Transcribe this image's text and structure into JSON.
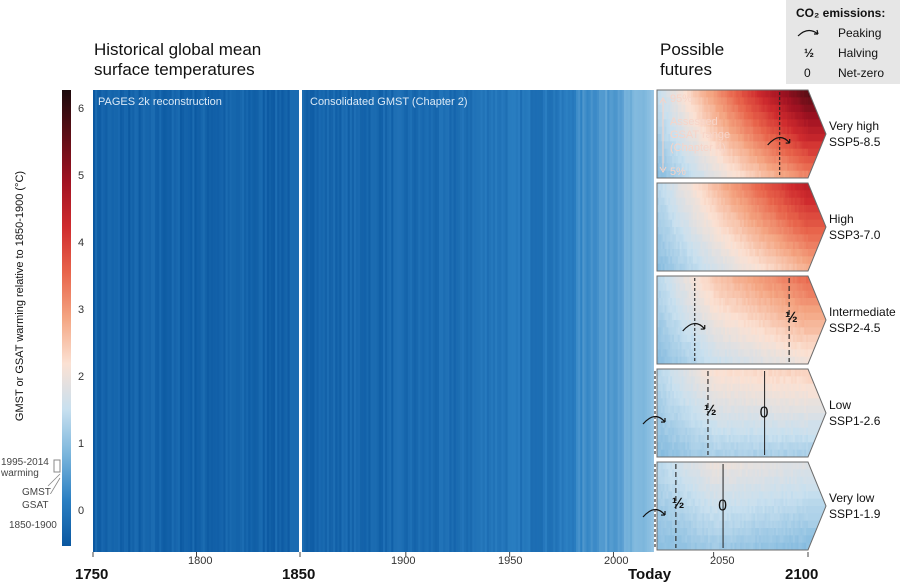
{
  "headings": {
    "historical": [
      "Historical global mean",
      "surface temperatures"
    ],
    "futures": [
      "Possible",
      "futures"
    ]
  },
  "legend_box": {
    "title": "CO₂ emissions:",
    "items": [
      {
        "symbol": "peaking-arrow",
        "label": "Peaking"
      },
      {
        "symbol": "½",
        "label": "Halving"
      },
      {
        "symbol": "0",
        "label": "Net-zero"
      }
    ]
  },
  "panels": {
    "pages2k": "PAGES 2k reconstruction",
    "gmst": "Consolidated GMST (Chapter 2)"
  },
  "assessed_range": {
    "upper": "95%",
    "lower": "5%",
    "text": [
      "Assessed",
      "GSAT range",
      "(Chapter 4)"
    ]
  },
  "colorbar": {
    "ylabel": "GMST or GSAT warming relative to 1850-1900 (°C)",
    "ticks": [
      "6",
      "5",
      "4",
      "3",
      "2",
      "1",
      "0"
    ],
    "annotations": {
      "warming": [
        "1995-2014",
        "warming"
      ],
      "gmst": "GMST",
      "gsat": "GSAT",
      "base": "1850-1900"
    },
    "colors": [
      "#0a57a0",
      "#2b7fc2",
      "#7ab5dc",
      "#c8e0ef",
      "#fbe1d3",
      "#f4a582",
      "#e8644b",
      "#cf2b2e",
      "#a11222",
      "#5e0e16",
      "#1c0a0c"
    ]
  },
  "x_axis": {
    "bold_labels": [
      "1750",
      "1850",
      "Today",
      "2100"
    ],
    "minor_labels": [
      "1800",
      "1900",
      "1950",
      "2000",
      "2050"
    ]
  },
  "scenarios": [
    {
      "name": "Very high",
      "code": "SSP5-8.5"
    },
    {
      "name": "High",
      "code": "SSP3-7.0"
    },
    {
      "name": "Intermediate",
      "code": "SSP2-4.5"
    },
    {
      "name": "Low",
      "code": "SSP1-2.6"
    },
    {
      "name": "Very low",
      "code": "SSP1-1.9"
    }
  ],
  "chart_data": {
    "type": "heatmap",
    "description_units": "°C warming relative to 1850-1900",
    "x_range": [
      1750,
      2100
    ],
    "color_range": [
      -0.5,
      6.3
    ],
    "historical_segments": [
      {
        "name": "PAGES 2k reconstruction",
        "x": [
          1750,
          1850
        ],
        "mean": -0.3
      },
      {
        "name": "Consolidated GMST (Chapter 2)",
        "x": [
          1850,
          2020
        ],
        "keyframes": [
          [
            1850,
            -0.25
          ],
          [
            1900,
            -0.2
          ],
          [
            1925,
            -0.15
          ],
          [
            1940,
            0.05
          ],
          [
            1960,
            0.0
          ],
          [
            1975,
            0.05
          ],
          [
            1985,
            0.35
          ],
          [
            2000,
            0.6
          ],
          [
            2010,
            0.8
          ],
          [
            2020,
            1.1
          ]
        ]
      }
    ],
    "series": [
      {
        "name": "SSP5-8.5",
        "years": [
          2020,
          2050,
          2100
        ],
        "median": [
          1.2,
          2.4,
          4.4
        ],
        "low": [
          1.0,
          1.9,
          3.3
        ],
        "high": [
          1.5,
          3.0,
          5.7
        ],
        "markers": [
          {
            "type": "peaking",
            "year": 2085
          }
        ]
      },
      {
        "name": "SSP3-7.0",
        "years": [
          2020,
          2050,
          2100
        ],
        "median": [
          1.2,
          2.1,
          3.6
        ],
        "low": [
          1.0,
          1.7,
          2.8
        ],
        "high": [
          1.4,
          2.6,
          4.6
        ],
        "markers": []
      },
      {
        "name": "SSP2-4.5",
        "years": [
          2020,
          2050,
          2100
        ],
        "median": [
          1.2,
          2.0,
          2.7
        ],
        "low": [
          1.0,
          1.6,
          2.1
        ],
        "high": [
          1.4,
          2.5,
          3.5
        ],
        "markers": [
          {
            "type": "peaking",
            "year": 2040
          },
          {
            "type": "halving",
            "year": 2090
          }
        ]
      },
      {
        "name": "SSP1-2.6",
        "years": [
          2020,
          2050,
          2100
        ],
        "median": [
          1.2,
          1.7,
          1.8
        ],
        "low": [
          1.0,
          1.3,
          1.3
        ],
        "high": [
          1.4,
          2.2,
          2.4
        ],
        "markers": [
          {
            "type": "peaking",
            "year": 2020
          },
          {
            "type": "halving",
            "year": 2047
          },
          {
            "type": "net-zero",
            "year": 2077
          }
        ]
      },
      {
        "name": "SSP1-1.9",
        "years": [
          2020,
          2050,
          2100
        ],
        "median": [
          1.2,
          1.6,
          1.4
        ],
        "low": [
          1.0,
          1.2,
          1.0
        ],
        "high": [
          1.4,
          2.0,
          1.8
        ],
        "markers": [
          {
            "type": "peaking",
            "year": 2020
          },
          {
            "type": "halving",
            "year": 2030
          },
          {
            "type": "net-zero",
            "year": 2055
          }
        ]
      }
    ]
  }
}
